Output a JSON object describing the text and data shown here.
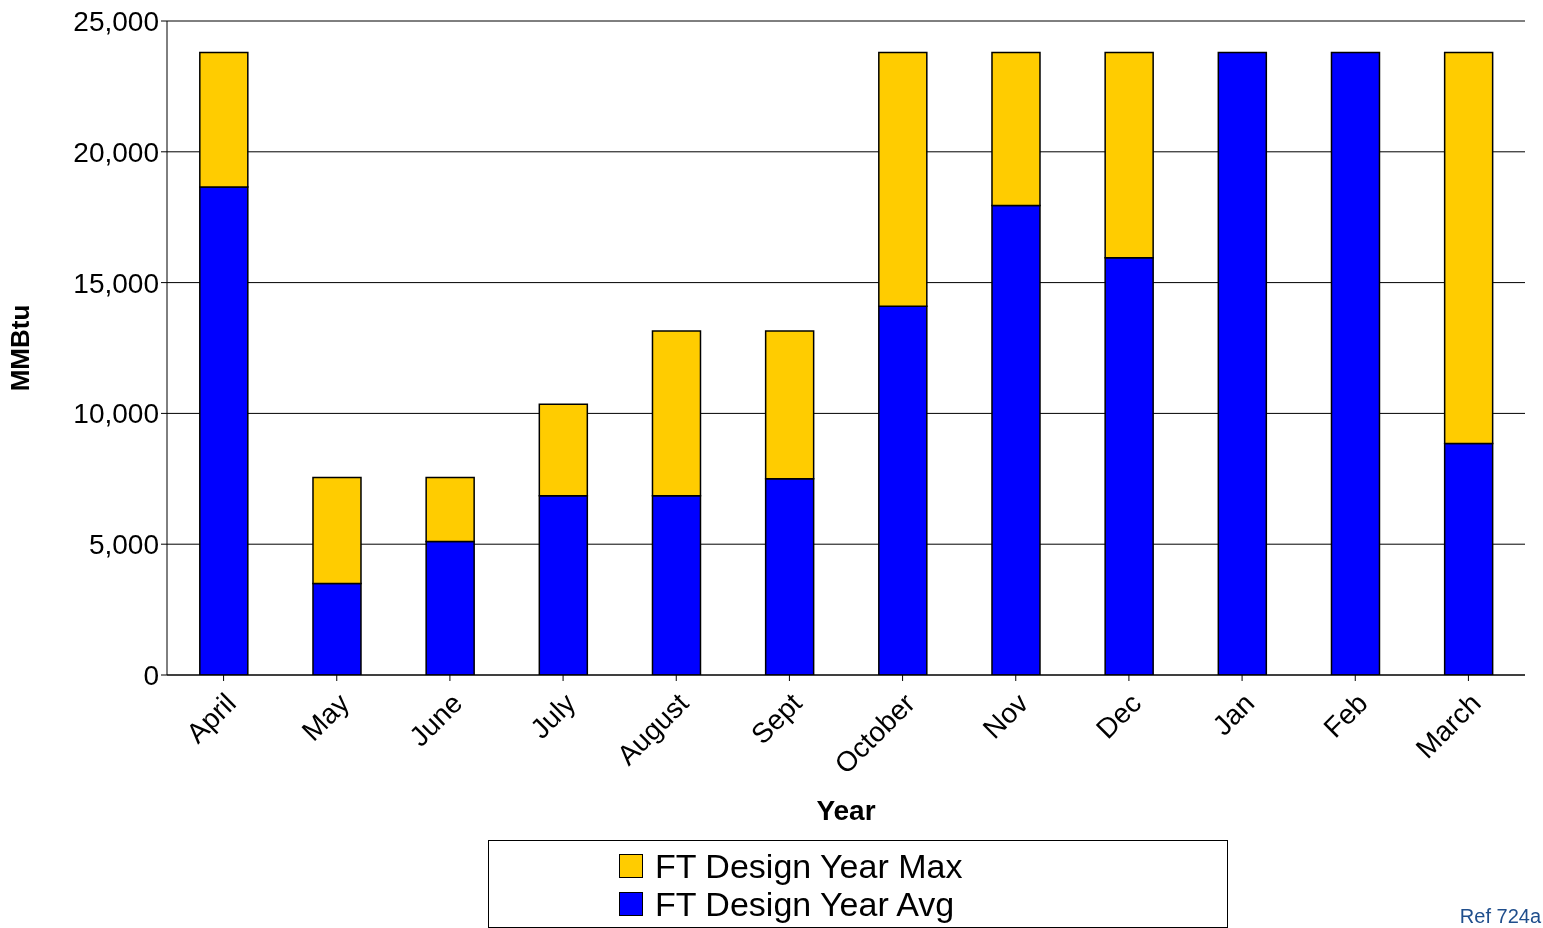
{
  "chart_data": {
    "type": "bar",
    "stacked": true,
    "xlabel": "Year",
    "ylabel": "MMBtu",
    "categories": [
      "April",
      "May",
      "June",
      "July",
      "August",
      "Sept",
      "October",
      "Nov",
      "Dec",
      "Jan",
      "Feb",
      "March"
    ],
    "series": [
      {
        "name": "FT Design Year Avg",
        "color": "#0000ff",
        "values": [
          18650,
          3500,
          5100,
          6850,
          6850,
          7500,
          14100,
          17950,
          15950,
          23800,
          23800,
          8850
        ]
      },
      {
        "name": "FT Design Year Max",
        "color": "#ffcc00",
        "values": [
          5150,
          4050,
          2450,
          3500,
          6300,
          5650,
          9700,
          5850,
          7850,
          0,
          0,
          14950
        ]
      }
    ],
    "ylim": [
      0,
      25000
    ],
    "yticks": [
      {
        "value": 0,
        "label": "0"
      },
      {
        "value": 5000,
        "label": "5,000"
      },
      {
        "value": 10000,
        "label": "10,000"
      },
      {
        "value": 15000,
        "label": "15,000"
      },
      {
        "value": 20000,
        "label": "20,000"
      },
      {
        "value": 25000,
        "label": "25,000"
      }
    ],
    "grid": "y",
    "legend": "bottom",
    "annotations": [
      "Ref 724a"
    ]
  }
}
